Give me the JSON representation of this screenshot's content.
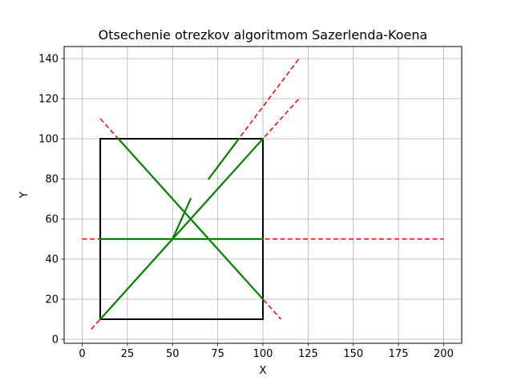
{
  "chart_data": {
    "type": "line",
    "title": "Otsechenie otrezkov algoritmom Sazerlenda-Koena",
    "xlabel": "X",
    "ylabel": "Y",
    "xlim": [
      -10,
      210
    ],
    "ylim": [
      -2,
      146
    ],
    "xticks": [
      0,
      25,
      50,
      75,
      100,
      125,
      150,
      175,
      200
    ],
    "yticks": [
      0,
      20,
      40,
      60,
      80,
      100,
      120,
      140
    ],
    "grid": true,
    "clip_window": {
      "xmin": 10,
      "ymin": 10,
      "xmax": 100,
      "ymax": 100,
      "color": "#000000"
    },
    "original_segments": {
      "color": "#ff0000",
      "style": "dashed",
      "segments": [
        [
          [
            0,
            50
          ],
          [
            200,
            50
          ]
        ],
        [
          [
            10,
            110
          ],
          [
            110,
            10
          ]
        ],
        [
          [
            5,
            5
          ],
          [
            120,
            120
          ]
        ],
        [
          [
            70,
            80
          ],
          [
            120,
            140
          ]
        ],
        [
          [
            50,
            50
          ],
          [
            60,
            70
          ]
        ]
      ]
    },
    "clipped_segments": {
      "color": "#008000",
      "style": "solid",
      "segments": [
        [
          [
            10,
            50
          ],
          [
            100,
            50
          ]
        ],
        [
          [
            20,
            100
          ],
          [
            100,
            20
          ]
        ],
        [
          [
            10,
            10
          ],
          [
            100,
            100
          ]
        ],
        [
          [
            70,
            80
          ],
          [
            86.67,
            100
          ]
        ],
        [
          [
            50,
            50
          ],
          [
            60,
            70
          ]
        ]
      ]
    }
  }
}
